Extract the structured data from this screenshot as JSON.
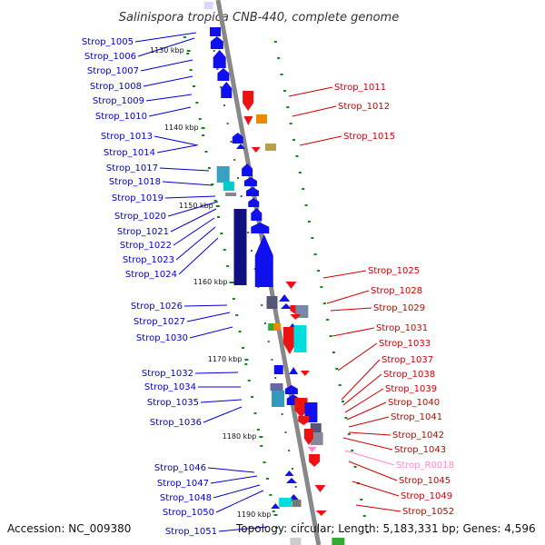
{
  "title": "Salinispora tropica CNB-440, complete genome",
  "accession": "Accession: NC_009380",
  "topology": "Topology: circular; Length: 5,183,331 bp; Genes: 4,596",
  "colors": {
    "left_label": "#0000cc",
    "right_label": "#cc0000",
    "rrna_label": "#ff88cc",
    "tick_mark": "#118811",
    "backbone": "#888888"
  },
  "position_marks": [
    "1130 kbp",
    "1140 kbp",
    "1150 kbp",
    "1160 kbp",
    "1170 kbp",
    "1180 kbp",
    "1190 kbp"
  ],
  "left_genes": [
    "Strop_1005",
    "Strop_1006",
    "Strop_1007",
    "Strop_1008",
    "Strop_1009",
    "Strop_1010",
    "Strop_1013",
    "Strop_1014",
    "Strop_1017",
    "Strop_1018",
    "Strop_1019",
    "Strop_1020",
    "Strop_1021",
    "Strop_1022",
    "Strop_1023",
    "Strop_1024",
    "Strop_1026",
    "Strop_1027",
    "Strop_1030",
    "Strop_1032",
    "Strop_1034",
    "Strop_1035",
    "Strop_1036",
    "Strop_1046",
    "Strop_1047",
    "Strop_1048",
    "Strop_1050",
    "Strop_1051"
  ],
  "right_genes": [
    "Strop_1011",
    "Strop_1012",
    "Strop_1015",
    "Strop_1025",
    "Strop_1028",
    "Strop_1029",
    "Strop_1031",
    "Strop_1033",
    "Strop_1037",
    "Strop_1038",
    "Strop_1039",
    "Strop_1040",
    "Strop_1041",
    "Strop_1042",
    "Strop_1043",
    "Strop_R0018",
    "Strop_1045",
    "Strop_1049",
    "Strop_1052"
  ]
}
